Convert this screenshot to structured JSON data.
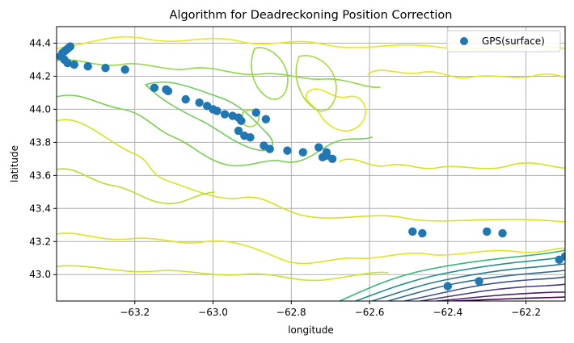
{
  "chart_data": {
    "type": "scatter",
    "title": "Algorithm for Deadreckoning Position Correction",
    "xlabel": "longitude",
    "ylabel": "latitude",
    "xlim": [
      -63.4,
      -62.1
    ],
    "ylim": [
      42.84,
      44.5
    ],
    "xticks": [
      -63.2,
      -63.0,
      -62.8,
      -62.6,
      -62.4,
      -62.2
    ],
    "xtick_labels": [
      "−63.2",
      "−63.0",
      "−62.8",
      "−62.6",
      "−62.4",
      "−62.2"
    ],
    "yticks": [
      43.0,
      43.2,
      43.4,
      43.6,
      43.8,
      44.0,
      44.2,
      44.4
    ],
    "ytick_labels": [
      "43.0",
      "43.2",
      "43.4",
      "43.6",
      "43.8",
      "44.0",
      "44.2",
      "44.4"
    ],
    "grid": true,
    "legend_position": "top-right",
    "series": [
      {
        "name": "GPS(surface)",
        "color": "#1f77b4",
        "marker": "circle",
        "x": [
          -63.39,
          -63.385,
          -63.38,
          -63.375,
          -63.37,
          -63.365,
          -63.38,
          -63.372,
          -63.355,
          -63.32,
          -63.275,
          -63.225,
          -63.15,
          -63.12,
          -63.115,
          -63.07,
          -63.035,
          -63.015,
          -63.0,
          -62.99,
          -62.97,
          -62.95,
          -62.935,
          -62.928,
          -62.935,
          -62.92,
          -62.905,
          -62.89,
          -62.865,
          -62.87,
          -62.855,
          -62.81,
          -62.77,
          -62.73,
          -62.72,
          -62.71,
          -62.71,
          -62.695,
          -62.49,
          -62.465,
          -62.4,
          -62.32,
          -62.3,
          -62.26,
          -62.115,
          -62.1
        ],
        "y": [
          44.32,
          44.34,
          44.35,
          44.36,
          44.37,
          44.38,
          44.3,
          44.28,
          44.27,
          44.26,
          44.25,
          44.24,
          44.13,
          44.12,
          44.11,
          44.06,
          44.04,
          44.02,
          44.0,
          43.99,
          43.97,
          43.96,
          43.95,
          43.93,
          43.87,
          43.84,
          43.83,
          43.98,
          43.94,
          43.78,
          43.76,
          43.75,
          43.74,
          43.77,
          43.71,
          43.74,
          43.72,
          43.7,
          43.26,
          43.25,
          42.93,
          42.96,
          43.26,
          43.25,
          43.09,
          43.11
        ]
      }
    ],
    "background": "contour",
    "contour_colormap": "viridis"
  }
}
